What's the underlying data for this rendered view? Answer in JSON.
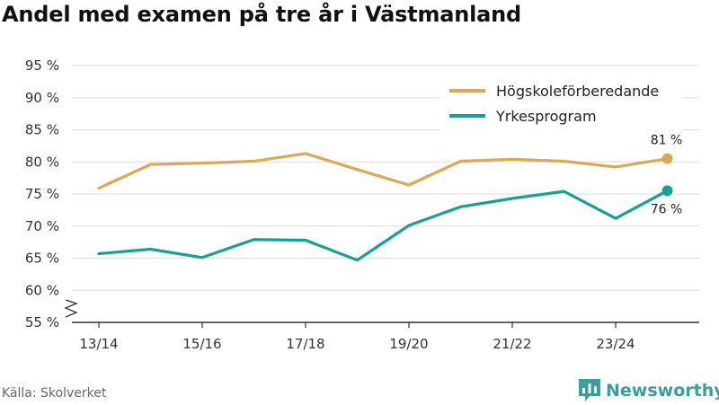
{
  "title": "Andel med examen på tre år i Västmanland",
  "source": "Källa: Skolverket",
  "brand": {
    "name": "Newsworthy",
    "icon": "bar-chart-logo-icon",
    "color": "#3a9e9c"
  },
  "chart_data": {
    "type": "line",
    "title": "Andel med examen på tre år i Västmanland",
    "x": [
      "13/14",
      "14/15",
      "15/16",
      "16/17",
      "17/18",
      "18/19",
      "19/20",
      "20/21",
      "21/22",
      "22/23",
      "23/24",
      "24/25"
    ],
    "x_tick_labels": [
      "13/14",
      "15/16",
      "17/18",
      "19/20",
      "21/22",
      "23/24"
    ],
    "y_ticks": [
      55,
      60,
      65,
      70,
      75,
      80,
      85,
      90,
      95
    ],
    "y_tick_labels": [
      "55 %",
      "60 %",
      "65 %",
      "70 %",
      "75 %",
      "80 %",
      "85 %",
      "90 %",
      "95 %"
    ],
    "ylim": [
      55,
      95
    ],
    "y_axis_break": true,
    "grid": "horizontal",
    "legend_position": "top-right",
    "series": [
      {
        "name": "Högskoleförberedande",
        "color": "#d9aa55",
        "values": [
          75.9,
          79.6,
          79.8,
          80.1,
          81.3,
          78.8,
          76.4,
          80.1,
          80.4,
          80.1,
          79.2,
          80.5
        ],
        "end_label": "81 %"
      },
      {
        "name": "Yrkesprogram",
        "color": "#1a9e96",
        "values": [
          65.7,
          66.4,
          65.1,
          67.9,
          67.8,
          64.7,
          70.1,
          73.0,
          74.3,
          75.4,
          71.2,
          75.5
        ],
        "end_label": "76 %"
      }
    ]
  }
}
